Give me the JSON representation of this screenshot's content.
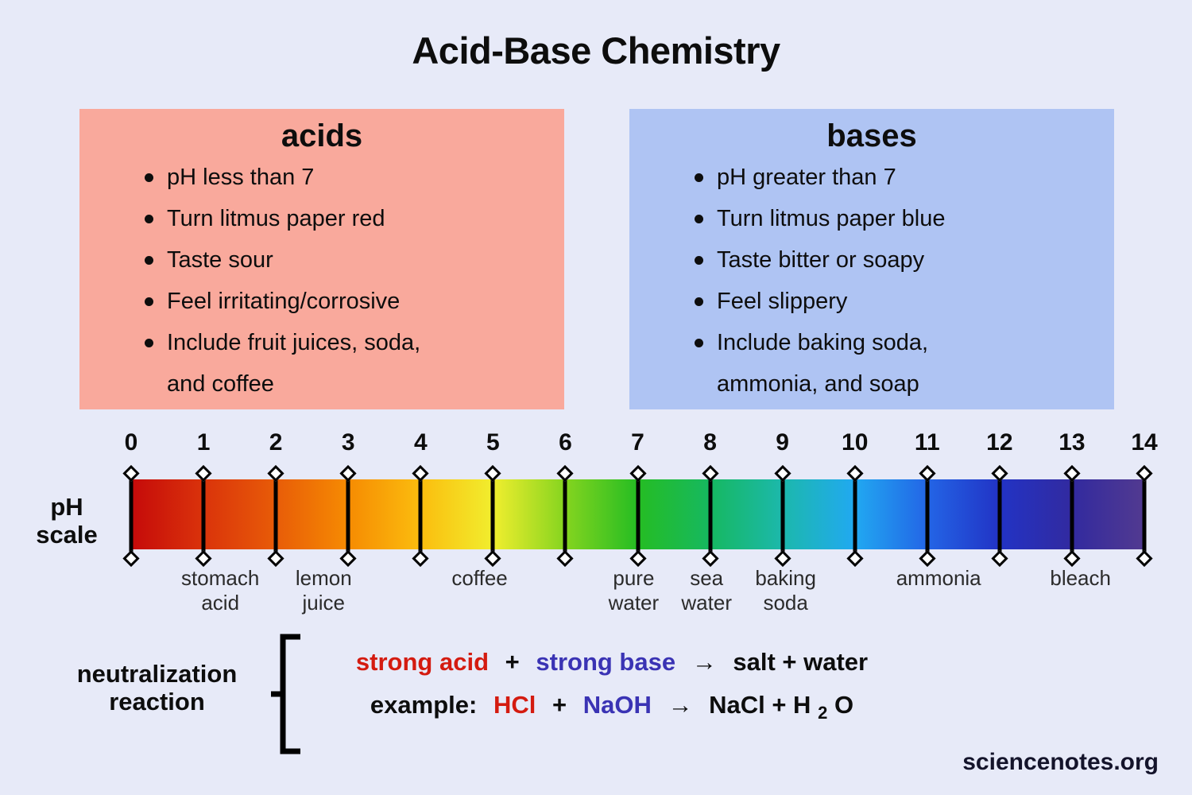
{
  "page": {
    "title": "Acid-Base Chemistry",
    "background": "#e7eaf8",
    "credit": "sciencenotes.org"
  },
  "acids_box": {
    "title": "acids",
    "bg_color": "#f9a99c",
    "items": [
      [
        "pH less than 7"
      ],
      [
        "Turn litmus paper red"
      ],
      [
        "Taste sour"
      ],
      [
        "Feel irritating/corrosive"
      ],
      [
        "Include fruit juices, soda,",
        "and coffee"
      ]
    ]
  },
  "bases_box": {
    "title": "bases",
    "bg_color": "#afc4f3",
    "items": [
      [
        "pH greater than 7"
      ],
      [
        "Turn litmus paper blue"
      ],
      [
        "Taste bitter or soapy"
      ],
      [
        "Feel slippery"
      ],
      [
        "Include baking soda,",
        "ammonia, and soap"
      ]
    ]
  },
  "ph_scale": {
    "label_line1": "pH",
    "label_line2": "scale",
    "min": 0,
    "max": 14,
    "ticks": [
      0,
      1,
      2,
      3,
      4,
      5,
      6,
      7,
      8,
      9,
      10,
      11,
      12,
      13,
      14
    ],
    "gradient_stops": [
      {
        "pct": 0,
        "color": "#c50a0a"
      },
      {
        "pct": 7.1,
        "color": "#da330b"
      },
      {
        "pct": 14.3,
        "color": "#e85c08"
      },
      {
        "pct": 21.4,
        "color": "#f68b02"
      },
      {
        "pct": 28.6,
        "color": "#fbbd0e"
      },
      {
        "pct": 35.7,
        "color": "#f1ee2e"
      },
      {
        "pct": 42.9,
        "color": "#84d41f"
      },
      {
        "pct": 50,
        "color": "#25bd23"
      },
      {
        "pct": 57.1,
        "color": "#16b860"
      },
      {
        "pct": 64.3,
        "color": "#1cb8ac"
      },
      {
        "pct": 71.4,
        "color": "#21a9f1"
      },
      {
        "pct": 78.6,
        "color": "#2365e6"
      },
      {
        "pct": 85.7,
        "color": "#2233c5"
      },
      {
        "pct": 92.9,
        "color": "#322a9f"
      },
      {
        "pct": 100,
        "color": "#523a90"
      }
    ],
    "substances": [
      {
        "name": "stomach acid",
        "lines": [
          "stomach",
          "acid"
        ],
        "pos_pct": 8.8
      },
      {
        "name": "lemon juice",
        "lines": [
          "lemon",
          "juice"
        ],
        "pos_pct": 19.0
      },
      {
        "name": "coffee",
        "lines": [
          "coffee"
        ],
        "pos_pct": 34.4
      },
      {
        "name": "pure water",
        "lines": [
          "pure",
          "water"
        ],
        "pos_pct": 49.6
      },
      {
        "name": "sea water",
        "lines": [
          "sea",
          "water"
        ],
        "pos_pct": 56.8
      },
      {
        "name": "baking soda",
        "lines": [
          "baking",
          "soda"
        ],
        "pos_pct": 64.6
      },
      {
        "name": "ammonia",
        "lines": [
          "ammonia"
        ],
        "pos_pct": 79.7
      },
      {
        "name": "bleach",
        "lines": [
          "bleach"
        ],
        "pos_pct": 93.7
      }
    ]
  },
  "neutralization": {
    "label_line1": "neutralization",
    "label_line2": "reaction",
    "equation1": {
      "acid": "strong acid",
      "plus": "+",
      "base": "strong base",
      "arrow": "→",
      "products": "salt + water"
    },
    "equation2": {
      "prefix": "example:",
      "acid": "HCl",
      "plus": "+",
      "base": "NaOH",
      "arrow": "→",
      "product_pre": "NaCl + H",
      "subscript": "2",
      "product_post": "O"
    }
  },
  "colors": {
    "acid_red": "#d41b10",
    "base_blue": "#3a33b4"
  }
}
